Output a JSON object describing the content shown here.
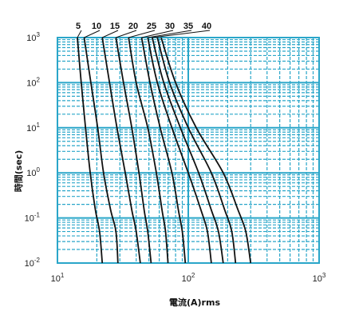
{
  "chart_data": {
    "type": "line",
    "title": "",
    "xlabel": "電流(A)rms",
    "ylabel": "時間(sec)",
    "x_scale": "log",
    "y_scale": "log",
    "xlim": [
      10,
      1000
    ],
    "ylim": [
      0.01,
      1000
    ],
    "grid": true,
    "colors": {
      "grid": "#2aa6c9",
      "curve": "#111111"
    },
    "x_ticks": [
      {
        "base": "10",
        "exp": "1",
        "value": 10
      },
      {
        "base": "10",
        "exp": "2",
        "value": 100
      },
      {
        "base": "10",
        "exp": "3",
        "value": 1000
      }
    ],
    "y_ticks": [
      {
        "base": "10",
        "exp": "3",
        "value": 1000
      },
      {
        "base": "10",
        "exp": "2",
        "value": 100
      },
      {
        "base": "10",
        "exp": "1",
        "value": 10
      },
      {
        "base": "10",
        "exp": "0",
        "value": 1
      },
      {
        "base": "10",
        "exp": "-1",
        "value": 0.1
      },
      {
        "base": "10",
        "exp": "-2",
        "value": 0.01
      }
    ],
    "series": [
      {
        "name": "5",
        "points": [
          [
            14.2,
            1000
          ],
          [
            15.2,
            100
          ],
          [
            16.4,
            10
          ],
          [
            17.8,
            1
          ],
          [
            19.5,
            0.15
          ],
          [
            21.0,
            0.05
          ],
          [
            22.0,
            0.01
          ]
        ]
      },
      {
        "name": "10",
        "points": [
          [
            16.0,
            1000
          ],
          [
            18.0,
            100
          ],
          [
            20.3,
            10
          ],
          [
            22.5,
            1
          ],
          [
            25.5,
            0.15
          ],
          [
            28.0,
            0.05
          ],
          [
            29.0,
            0.01
          ]
        ]
      },
      {
        "name": "15",
        "points": [
          [
            22.0,
            1000
          ],
          [
            25.0,
            100
          ],
          [
            28.5,
            10
          ],
          [
            33.0,
            1
          ],
          [
            37.0,
            0.15
          ],
          [
            40.0,
            0.05
          ],
          [
            43.0,
            0.01
          ]
        ]
      },
      {
        "name": "20",
        "points": [
          [
            28.0,
            1000
          ],
          [
            32.0,
            100
          ],
          [
            37.0,
            10
          ],
          [
            42.0,
            1
          ],
          [
            46.0,
            0.15
          ],
          [
            49.0,
            0.05
          ],
          [
            52.0,
            0.01
          ]
        ]
      },
      {
        "name": "25",
        "points": [
          [
            35.0,
            1000
          ],
          [
            40.0,
            100
          ],
          [
            49.0,
            10
          ],
          [
            57.0,
            1
          ],
          [
            63.0,
            0.15
          ],
          [
            67.0,
            0.05
          ],
          [
            70.0,
            0.01
          ]
        ]
      },
      {
        "name": "30",
        "points": [
          [
            44.0,
            1000
          ],
          [
            51.0,
            100
          ],
          [
            61.0,
            10
          ],
          [
            75.0,
            1
          ],
          [
            84.0,
            0.15
          ],
          [
            90.0,
            0.05
          ],
          [
            95.0,
            0.01
          ]
        ]
      },
      {
        "name": "35",
        "points": [
          [
            49.0,
            1000
          ],
          [
            58.0,
            100
          ],
          [
            75.0,
            10
          ],
          [
            100.0,
            1
          ],
          [
            125.0,
            0.15
          ],
          [
            140.0,
            0.05
          ],
          [
            150.0,
            0.01
          ]
        ]
      },
      {
        "name": "40",
        "points": [
          [
            53.0,
            1000
          ],
          [
            65.0,
            100
          ],
          [
            87.0,
            10
          ],
          [
            120.0,
            1
          ],
          [
            150.0,
            0.15
          ],
          [
            170.0,
            0.05
          ],
          [
            185.0,
            0.01
          ]
        ]
      }
    ],
    "extra_curves": [
      {
        "points": [
          [
            58.0,
            1000
          ],
          [
            72.0,
            100
          ],
          [
            100.0,
            10
          ],
          [
            150.0,
            1
          ],
          [
            190.0,
            0.15
          ],
          [
            215.0,
            0.05
          ],
          [
            230.0,
            0.01
          ]
        ]
      },
      {
        "points": [
          [
            62.0,
            1000
          ],
          [
            80.0,
            100
          ],
          [
            115.0,
            10
          ],
          [
            185.0,
            1
          ],
          [
            240.0,
            0.15
          ],
          [
            275.0,
            0.05
          ],
          [
            300.0,
            0.01
          ]
        ]
      }
    ]
  }
}
